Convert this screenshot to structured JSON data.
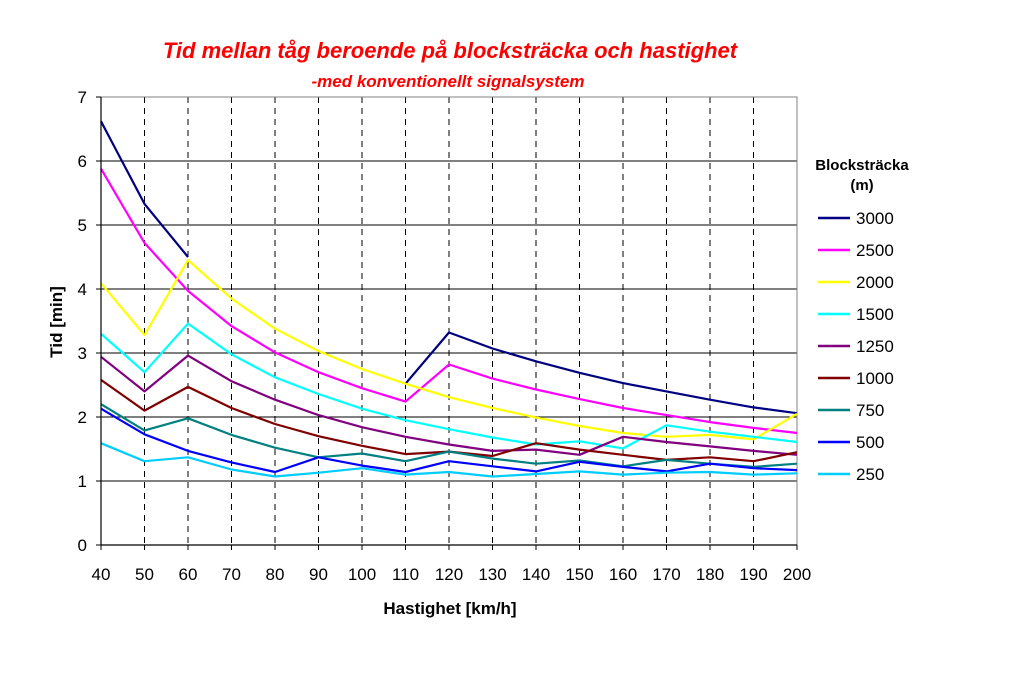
{
  "chart_data": {
    "type": "line",
    "title": "Tid mellan tåg beroende på blocksträcka och hastighet",
    "subtitle": "-med konventionellt signalsystem",
    "xlabel": "Hastighet [km/h]",
    "ylabel": "Tid [min]",
    "x": [
      40,
      50,
      60,
      70,
      80,
      90,
      100,
      110,
      120,
      130,
      140,
      150,
      160,
      170,
      180,
      190,
      200
    ],
    "xlim": [
      40,
      200
    ],
    "ylim": [
      0,
      7
    ],
    "yticks": [
      0,
      1,
      2,
      3,
      4,
      5,
      6,
      7
    ],
    "grid": "horizontal solid, vertical dashed",
    "legend_title_line1": "Blocksträcka",
    "legend_title_line2": "(m)",
    "legend_position": "right",
    "series": [
      {
        "name": "3000",
        "color": "#000080",
        "values": [
          6.62,
          5.33,
          4.5,
          null,
          null,
          null,
          null,
          2.52,
          3.32,
          3.07,
          2.87,
          2.69,
          2.53,
          2.4,
          2.27,
          2.15,
          2.06
        ]
      },
      {
        "name": "2500",
        "color": "#ff00ff",
        "values": [
          5.88,
          4.72,
          3.97,
          3.42,
          3.01,
          2.7,
          2.45,
          2.24,
          2.82,
          2.6,
          2.43,
          2.28,
          2.14,
          2.03,
          1.92,
          1.83,
          1.75
        ]
      },
      {
        "name": "2000",
        "color": "#ffff00",
        "values": [
          4.09,
          3.28,
          4.45,
          3.85,
          3.38,
          3.03,
          2.75,
          2.52,
          2.31,
          2.14,
          1.99,
          1.86,
          1.75,
          1.69,
          1.72,
          1.65,
          2.05
        ]
      },
      {
        "name": "1500",
        "color": "#00ffff",
        "values": [
          3.3,
          2.7,
          3.46,
          2.98,
          2.62,
          2.36,
          2.13,
          1.95,
          1.81,
          1.68,
          1.57,
          1.62,
          1.51,
          1.87,
          1.77,
          1.69,
          1.61
        ]
      },
      {
        "name": "1250",
        "color": "#800080",
        "values": [
          2.94,
          2.4,
          2.96,
          2.56,
          2.27,
          2.03,
          1.84,
          1.69,
          1.57,
          1.47,
          1.49,
          1.41,
          1.69,
          1.61,
          1.54,
          1.47,
          1.41
        ]
      },
      {
        "name": "1000",
        "color": "#800000",
        "values": [
          2.58,
          2.1,
          2.47,
          2.14,
          1.89,
          1.7,
          1.55,
          1.42,
          1.46,
          1.39,
          1.59,
          1.49,
          1.41,
          1.33,
          1.37,
          1.31,
          1.45
        ]
      },
      {
        "name": "750",
        "color": "#008080",
        "values": [
          2.2,
          1.79,
          1.98,
          1.72,
          1.52,
          1.37,
          1.43,
          1.31,
          1.46,
          1.35,
          1.27,
          1.32,
          1.23,
          1.33,
          1.27,
          1.22,
          1.27
        ]
      },
      {
        "name": "500",
        "color": "#0000ff",
        "values": [
          2.13,
          1.73,
          1.47,
          1.29,
          1.14,
          1.37,
          1.24,
          1.14,
          1.31,
          1.23,
          1.15,
          1.3,
          1.22,
          1.15,
          1.27,
          1.2,
          1.17
        ]
      },
      {
        "name": "250",
        "color": "#00ccff",
        "values": [
          1.59,
          1.31,
          1.37,
          1.18,
          1.07,
          1.13,
          1.2,
          1.1,
          1.14,
          1.07,
          1.11,
          1.15,
          1.1,
          1.13,
          1.14,
          1.1,
          1.12
        ]
      }
    ]
  }
}
